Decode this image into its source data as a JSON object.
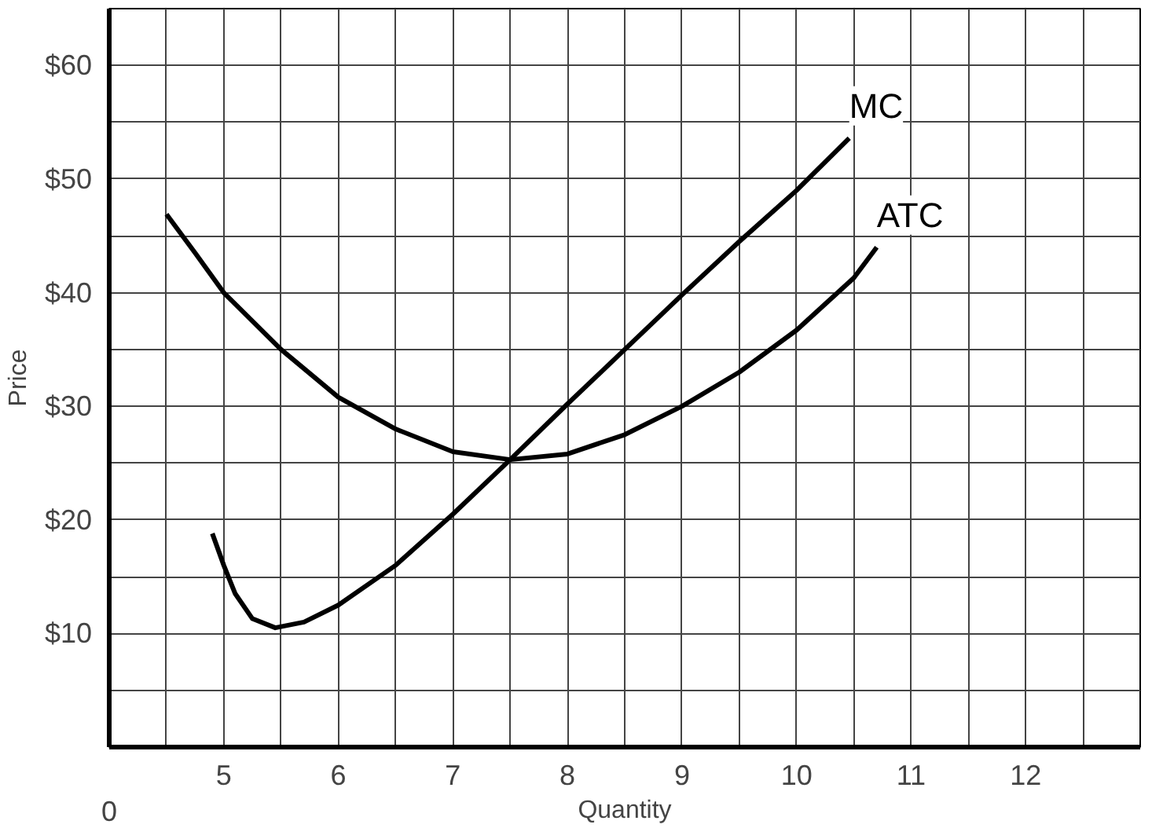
{
  "chart_data": {
    "type": "line",
    "xlabel": "Quantity",
    "ylabel": "Price",
    "xlim": [
      4,
      13
    ],
    "ylim": [
      0,
      65
    ],
    "annotations": [
      "0"
    ],
    "xticks": [
      {
        "value": 4,
        "label": null
      },
      {
        "value": 4.5,
        "label": null
      },
      5,
      {
        "value": 5.5,
        "label": null
      },
      6,
      {
        "value": 6.5,
        "label": null
      },
      7,
      {
        "value": 7.5,
        "label": null
      },
      8,
      {
        "value": 8.5,
        "label": null
      },
      9,
      {
        "value": 9.5,
        "label": null
      },
      10,
      {
        "value": 10.5,
        "label": null
      },
      11,
      {
        "value": 11.5,
        "label": null
      },
      12,
      {
        "value": 12.5,
        "label": null
      }
    ],
    "yticks": [
      {
        "value": 5,
        "label": null
      },
      {
        "value": 10,
        "label": "$10"
      },
      {
        "value": 15,
        "label": null
      },
      {
        "value": 20,
        "label": "$20"
      },
      {
        "value": 25,
        "label": null
      },
      {
        "value": 30,
        "label": "$30"
      },
      {
        "value": 35,
        "label": null
      },
      {
        "value": 40,
        "label": "$40"
      },
      {
        "value": 45,
        "label": null
      },
      {
        "value": 50,
        "label": "$50"
      },
      {
        "value": 55,
        "label": null
      },
      {
        "value": 60,
        "label": "$60"
      }
    ],
    "grid": true,
    "marker": "none",
    "line_style": "solid",
    "series": [
      {
        "name": "MC",
        "color": "#000000",
        "x": [
          4.9,
          5.0,
          5.1,
          5.25,
          5.45,
          5.7,
          6.0,
          6.5,
          7.0,
          7.5,
          8.0,
          8.5,
          9.0,
          9.5,
          10.0,
          10.46
        ],
        "values": [
          18.8,
          16,
          13.5,
          11.3,
          10.5,
          11,
          12.5,
          16,
          20.5,
          25.3,
          30.2,
          35,
          39.8,
          44.5,
          49,
          53.6
        ]
      },
      {
        "name": "ATC",
        "color": "#000000",
        "x": [
          4.5,
          4.75,
          5.0,
          5.5,
          6.0,
          6.5,
          7.0,
          7.5,
          8.0,
          8.5,
          9.0,
          9.5,
          10.0,
          10.5,
          10.7
        ],
        "values": [
          46.9,
          43.5,
          40,
          35,
          30.8,
          28,
          26,
          25.3,
          25.8,
          27.5,
          30,
          33,
          36.7,
          41.3,
          44
        ]
      }
    ]
  }
}
